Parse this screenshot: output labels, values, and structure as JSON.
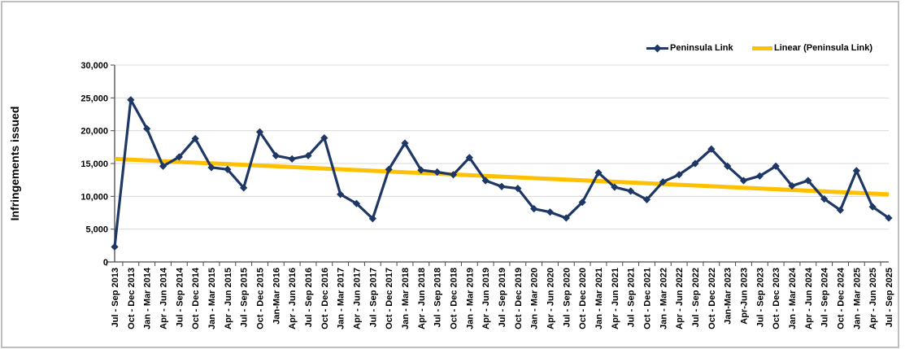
{
  "chart_data": {
    "type": "line",
    "title": "",
    "xlabel": "",
    "ylabel": "Infringements issued",
    "ylim": [
      0,
      30000
    ],
    "y_tick_step": 5000,
    "y_tick_labels": [
      "0",
      "5,000",
      "10,000",
      "15,000",
      "20,000",
      "25,000",
      "30,000"
    ],
    "grid": "horizontal",
    "legend_position": "top-right",
    "categories": [
      "Jul - Sep 2013",
      "Oct - Dec 2013",
      "Jan - Mar 2014",
      "Apr - Jun 2014",
      "Jul - Sep 2014",
      "Oct - Dec 2014",
      "Jan - Mar 2015",
      "Apr - Jun 2015",
      "Jul - Sep 2015",
      "Oct - Dec 2015",
      "Jan-Mar 2016",
      "Apr - Jun 2016",
      "Jul - Sep 2016",
      "Oct - Dec 2016",
      "Jan - Mar 2017",
      "Apr - Jun 2017",
      "Jul - Sep 2017",
      "Oct - Dec 2017",
      "Jan - Mar 2018",
      "Apr - Jun 2018",
      "Jul - Sep 2018",
      "Oct - Dec 2018",
      "Jan - Mar 2019",
      "Apr - Jun 2019",
      "Jul - Sep 2019",
      "Oct - Dec 2019",
      "Jan - Mar 2020",
      "Apr - Jun 2020",
      "Jul - Sep 2020",
      "Oct - Dec 2020",
      "Jan - Mar 2021",
      "Apr - Jun 2021",
      "Jul - Sep 2021",
      "Oct - Dec 2021",
      "Jan - Mar 2022",
      "Apr - Jun 2022",
      "Jul - Sep 2022",
      "Oct - Dec 2022",
      "Jan-Mar 2023",
      "Apr-Jun 2023",
      "Jul - Sep 2023",
      "Oct - Dec 2023",
      "Jan - Mar 2024",
      "Apr - Jun 2024",
      "Jul - Sep 2024",
      "Oct - Dec 2024",
      "Jan - Mar 2025",
      "Apr - Jun 2025",
      "Jul - Sep 2025"
    ],
    "series": [
      {
        "name": "Peninsula Link",
        "color": "#1e3765",
        "marker": "diamond",
        "values": [
          2300,
          24700,
          20300,
          14600,
          16000,
          18800,
          14400,
          14100,
          11300,
          19800,
          16200,
          15700,
          16200,
          18900,
          10300,
          8900,
          6600,
          14100,
          18100,
          14000,
          13700,
          13300,
          15900,
          12400,
          11500,
          11200,
          8100,
          7600,
          6700,
          9100,
          13600,
          11400,
          10800,
          9500,
          12200,
          13300,
          15000,
          17200,
          14600,
          12400,
          13100,
          14600,
          11600,
          12400,
          9600,
          7900,
          13900,
          8400,
          6700
        ]
      },
      {
        "name": "Linear (Peninsula Link)",
        "color": "#ffc000",
        "type": "trendline",
        "trend_start": 15700,
        "trend_end": 10300
      }
    ]
  },
  "legend": {
    "item1": "Peninsula Link",
    "item2": "Linear (Peninsula Link)"
  }
}
